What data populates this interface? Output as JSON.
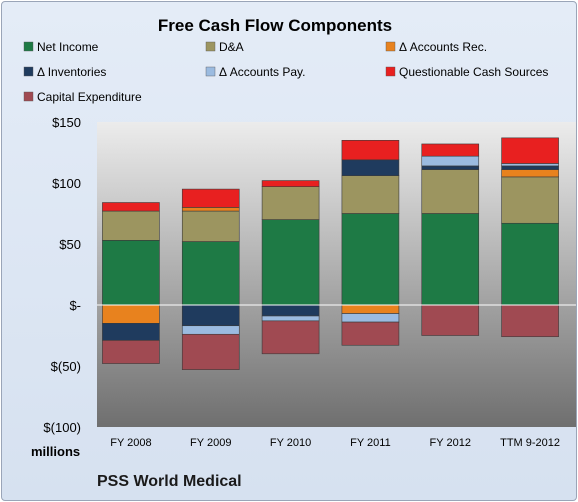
{
  "chart_data": {
    "type": "bar",
    "stacked": true,
    "title": "Free Cash Flow Components",
    "categories": [
      "FY 2008",
      "FY 2009",
      "FY 2010",
      "FY 2011",
      "FY 2012",
      "TTM 9-2012"
    ],
    "series": [
      {
        "name": "Net Income",
        "color": "#1e7a45",
        "values": [
          53,
          52,
          70,
          75,
          75,
          67
        ]
      },
      {
        "name": "D&A",
        "color": "#9c9560",
        "values": [
          24,
          25,
          27,
          31,
          36,
          38
        ]
      },
      {
        "name": "Δ Accounts Rec.",
        "color": "#e8821e",
        "values": [
          -15,
          3,
          0,
          -7,
          0,
          6
        ]
      },
      {
        "name": "Δ Inventories",
        "color": "#1f3b5e",
        "values": [
          -14,
          -17,
          -9,
          13,
          3,
          3
        ]
      },
      {
        "name": "Δ Accounts Pay.",
        "color": "#9bbbe0",
        "values": [
          0,
          -7,
          -4,
          -7,
          8,
          2
        ]
      },
      {
        "name": "Questionable Cash Sources",
        "color": "#e82020",
        "values": [
          7,
          15,
          5,
          16,
          10,
          21
        ]
      },
      {
        "name": "Capital Expenditure",
        "color": "#a04a52",
        "values": [
          -19,
          -29,
          -27,
          -19,
          -25,
          -26
        ]
      }
    ],
    "ylim": [
      -100,
      150
    ],
    "yticks": [
      150,
      100,
      50,
      0,
      -50,
      -100
    ],
    "ytick_labels": [
      "$150",
      "$100",
      "$50",
      "$-",
      "$(50)",
      "$(100)"
    ],
    "unit_label": "millions",
    "legend_position": "top",
    "grid": false
  },
  "footer": "PSS World Medical"
}
